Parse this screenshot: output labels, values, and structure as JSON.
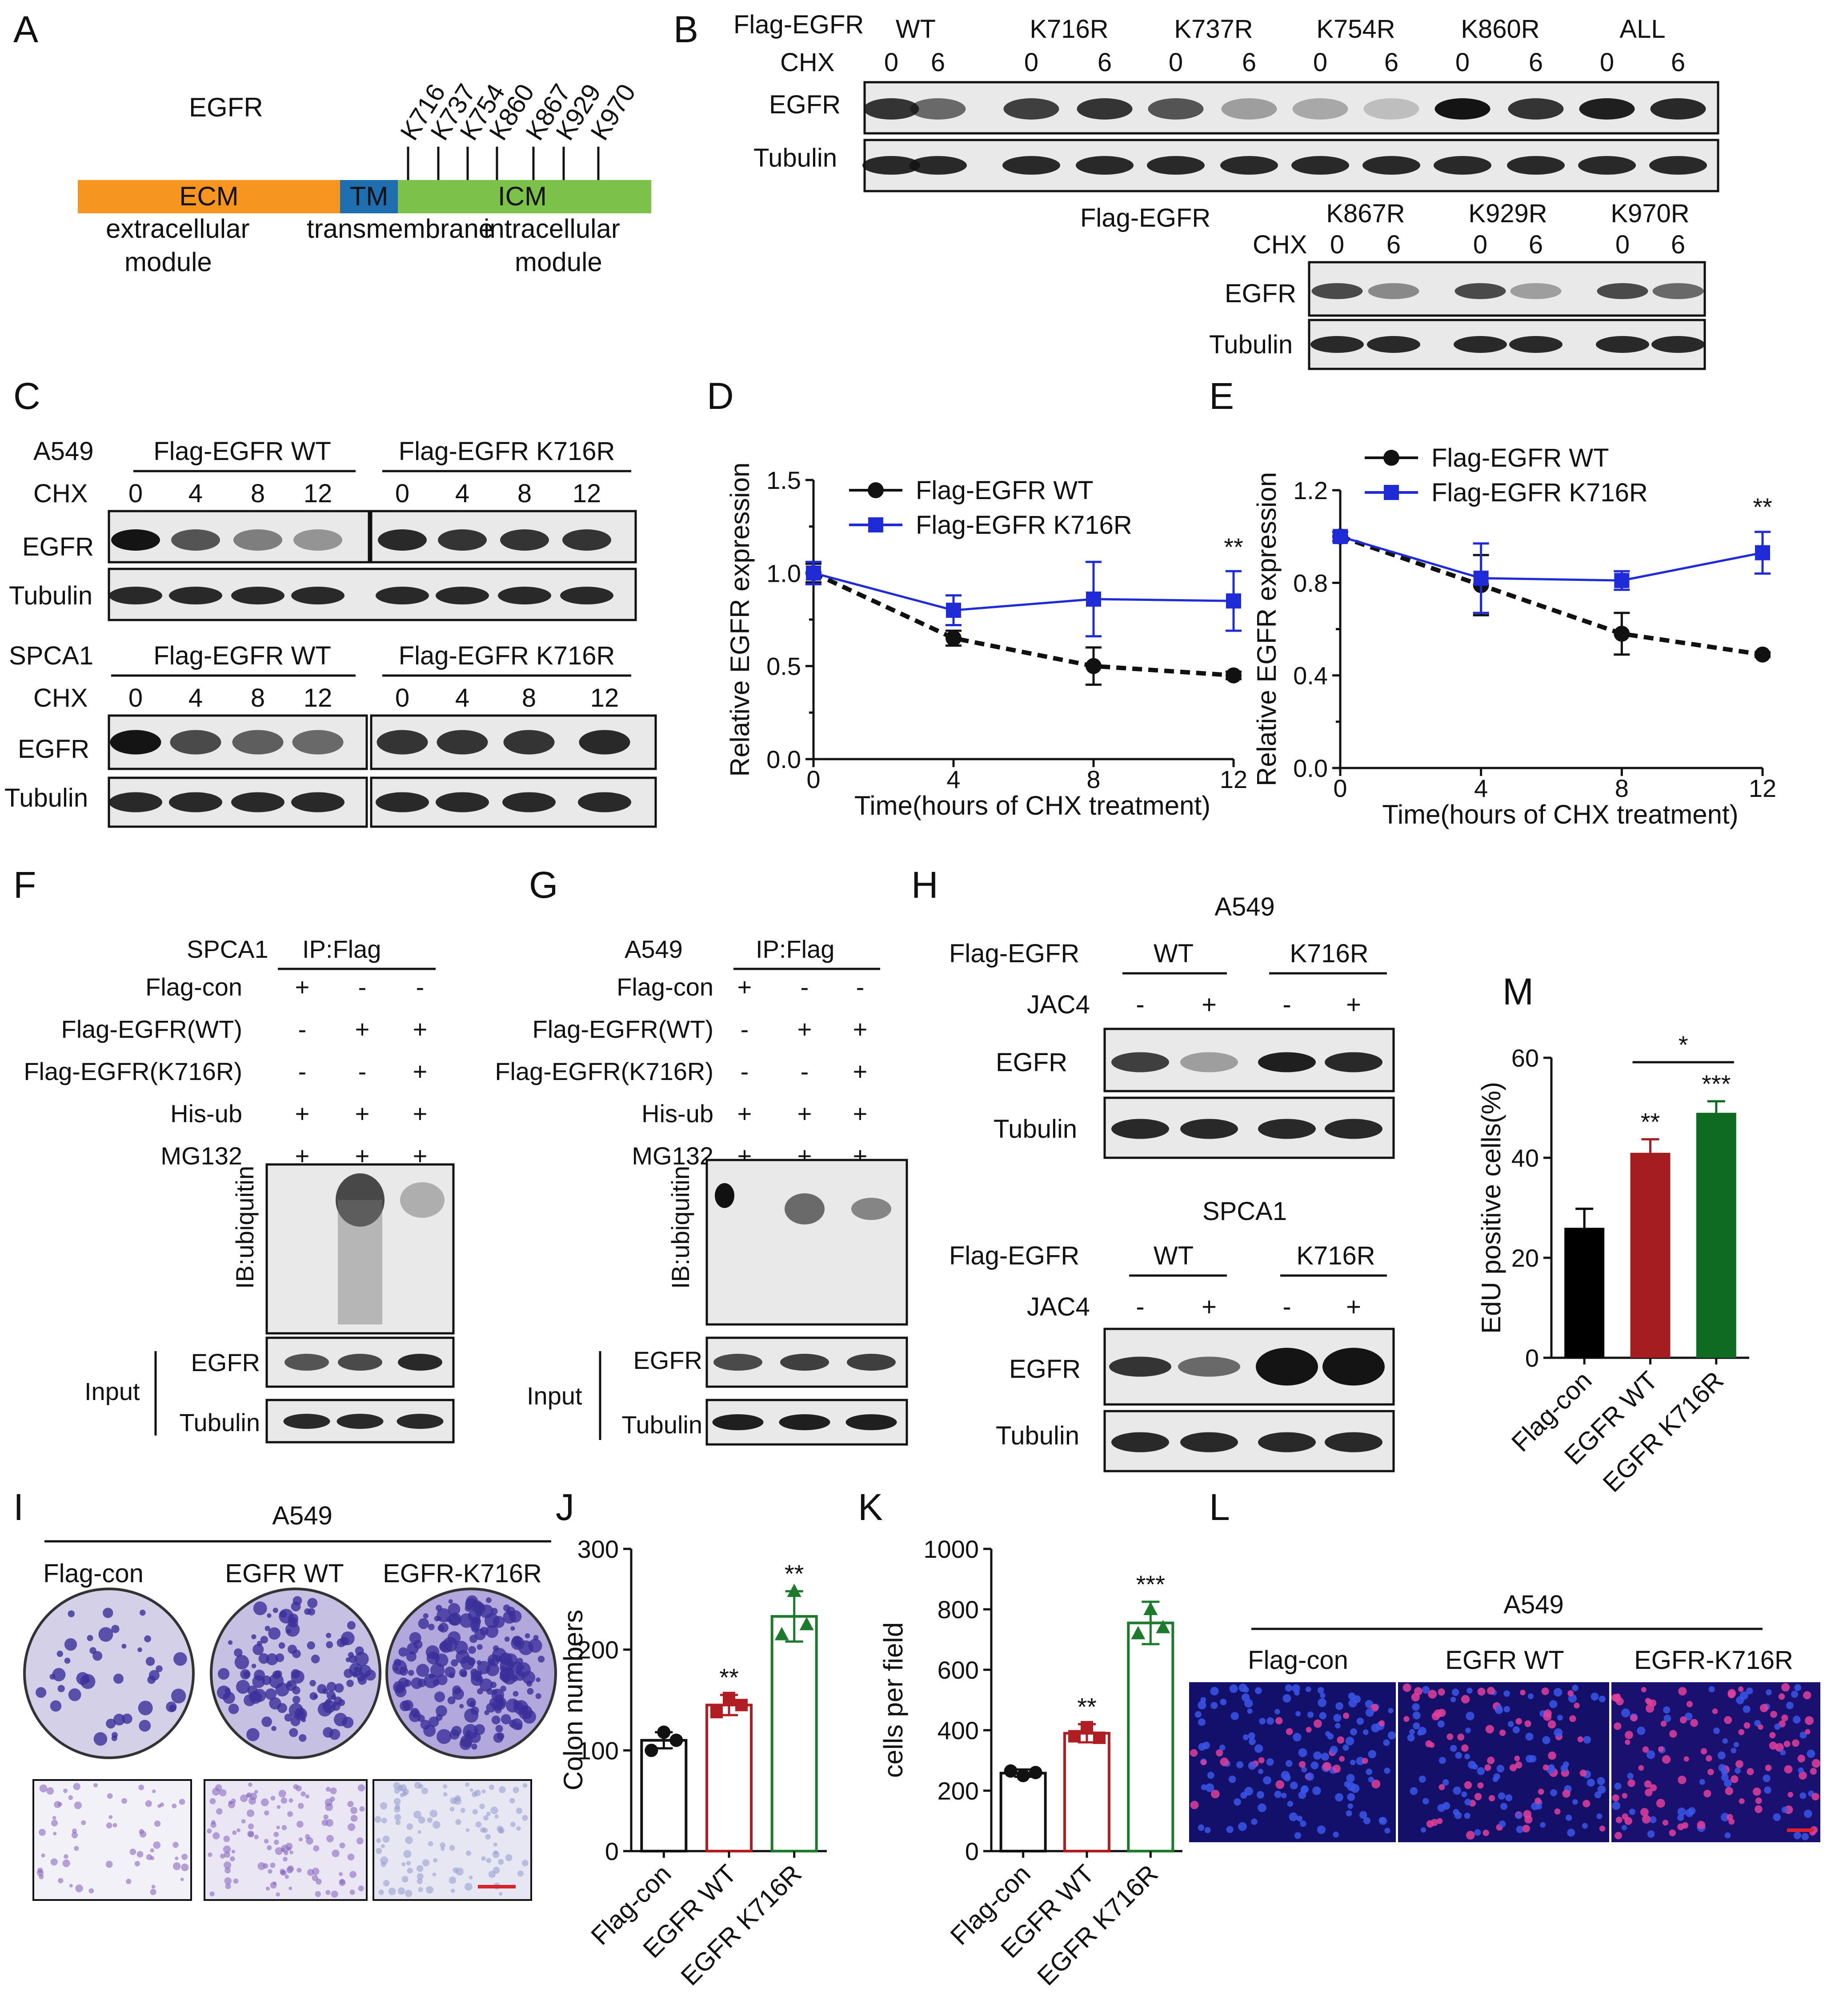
{
  "panel_letters": [
    "A",
    "B",
    "C",
    "D",
    "E",
    "F",
    "G",
    "H",
    "I",
    "J",
    "K",
    "L",
    "M"
  ],
  "panelA": {
    "title": "EGFR",
    "segments": [
      {
        "label": "ECM",
        "color": "#f6951f"
      },
      {
        "label": "TM",
        "color": "#1f6fb0"
      },
      {
        "label": "ICM",
        "color": "#7cc24a"
      }
    ],
    "sites": [
      "K716",
      "K737",
      "K754",
      "K860",
      "K867",
      "K929",
      "K970"
    ],
    "sub_labels": {
      "extracellular": "extracellular",
      "transmembrane": "transmembrane",
      "intracellular": "intracellular",
      "module1": "module",
      "module2": "module"
    }
  },
  "panelB": {
    "flag_label": "Flag-EGFR",
    "chx_label": "CHX",
    "row1_groups": [
      "WT",
      "K716R",
      "K737R",
      "K754R",
      "K860R",
      "ALL"
    ],
    "row2_groups": [
      "K867R",
      "K929R",
      "K970R"
    ],
    "times": [
      "0",
      "6"
    ],
    "bands": [
      "EGFR",
      "Tubulin"
    ]
  },
  "panelC": {
    "cells": [
      "A549",
      "SPCA1"
    ],
    "groups": [
      "Flag-EGFR WT",
      "Flag-EGFR K716R"
    ],
    "chx_label": "CHX",
    "times": [
      "0",
      "4",
      "8",
      "12"
    ],
    "bands": [
      "EGFR",
      "Tubulin"
    ]
  },
  "panelD": {
    "chart_data": {
      "type": "line",
      "xlabel": "Time(hours of CHX treatment)",
      "ylabel": "Relative EGFR expression",
      "x": [
        0,
        4,
        8,
        12
      ],
      "xticks": [
        "0",
        "4",
        "8",
        "12"
      ],
      "yticks": [
        "0.0",
        "0.5",
        "1.0",
        "1.5"
      ],
      "ylim": [
        0,
        1.5
      ],
      "series": [
        {
          "name": "Flag-EGFR WT",
          "values": [
            1.0,
            0.65,
            0.5,
            0.45
          ],
          "err": [
            0.05,
            0.04,
            0.1,
            0.02
          ],
          "color": "#111111",
          "dash": true,
          "marker": "circle"
        },
        {
          "name": "Flag-EGFR K716R",
          "values": [
            1.0,
            0.8,
            0.86,
            0.85
          ],
          "err": [
            0.06,
            0.08,
            0.2,
            0.16
          ],
          "color": "#1f2bd6",
          "dash": false,
          "marker": "square"
        }
      ],
      "annotation": "**",
      "legend": "top-right"
    }
  },
  "panelE": {
    "chart_data": {
      "type": "line",
      "xlabel": "Time(hours of CHX treatment)",
      "ylabel": "Relative EGFR expression",
      "x": [
        0,
        4,
        8,
        12
      ],
      "xticks": [
        "0",
        "4",
        "8",
        "12"
      ],
      "yticks": [
        "0.0",
        "0.4",
        "0.8",
        "1.2"
      ],
      "ylim": [
        0,
        1.2
      ],
      "series": [
        {
          "name": "Flag-EGFR WT",
          "values": [
            1.0,
            0.79,
            0.58,
            0.49
          ],
          "err": [
            0.02,
            0.13,
            0.09,
            0.01
          ],
          "color": "#111111",
          "dash": true,
          "marker": "circle"
        },
        {
          "name": "Flag-EGFR K716R",
          "values": [
            1.0,
            0.82,
            0.81,
            0.93
          ],
          "err": [
            0.02,
            0.15,
            0.04,
            0.09
          ],
          "color": "#1f2bd6",
          "dash": false,
          "marker": "square"
        }
      ],
      "annotation": "**",
      "legend": "top-right"
    }
  },
  "panelF": {
    "cell": "SPCA1",
    "ip": "IP:Flag",
    "rows": [
      {
        "label": "Flag-con",
        "signs": [
          "+",
          "-",
          "-"
        ]
      },
      {
        "label": "Flag-EGFR(WT)",
        "signs": [
          "-",
          "+",
          "+"
        ]
      },
      {
        "label": "Flag-EGFR(K716R)",
        "signs": [
          "-",
          "-",
          "+"
        ]
      },
      {
        "label": "His-ub",
        "signs": [
          "+",
          "+",
          "+"
        ]
      },
      {
        "label": "MG132",
        "signs": [
          "+",
          "+",
          "+"
        ]
      }
    ],
    "ib": "IB:ubiquitin",
    "input": "Input",
    "bands": [
      "EGFR",
      "Tubulin"
    ]
  },
  "panelG": {
    "cell": "A549",
    "ip": "IP:Flag",
    "rows": [
      {
        "label": "Flag-con",
        "signs": [
          "+",
          "-",
          "-"
        ]
      },
      {
        "label": "Flag-EGFR(WT)",
        "signs": [
          "-",
          "+",
          "+"
        ]
      },
      {
        "label": "Flag-EGFR(K716R)",
        "signs": [
          "-",
          "-",
          "+"
        ]
      },
      {
        "label": "His-ub",
        "signs": [
          "+",
          "+",
          "+"
        ]
      },
      {
        "label": "MG132",
        "signs": [
          "+",
          "+",
          "+"
        ]
      }
    ],
    "ib": "IB:ubiquitin",
    "input": "Input",
    "bands": [
      "EGFR",
      "Tubulin"
    ]
  },
  "panelH": {
    "cells": [
      "A549",
      "SPCA1"
    ],
    "flag_label": "Flag-EGFR",
    "groups": [
      "WT",
      "K716R"
    ],
    "jac_label": "JAC4",
    "jac_signs": [
      "-",
      "+",
      "-",
      "+"
    ],
    "bands": [
      "EGFR",
      "Tubulin"
    ]
  },
  "panelI": {
    "cell": "A549",
    "groups": [
      "Flag-con",
      "EGFR WT",
      "EGFR-K716R"
    ]
  },
  "panelJ": {
    "chart_data": {
      "type": "bar",
      "categories": [
        "Flag-con",
        "EGFR WT",
        "EGFR K716R"
      ],
      "values": [
        110,
        145,
        233
      ],
      "err": [
        8,
        10,
        25
      ],
      "points": [
        [
          100,
          118,
          110
        ],
        [
          138,
          152,
          145
        ],
        [
          215,
          258,
          225
        ]
      ],
      "colors": [
        "#111111",
        "#b01e23",
        "#1d7a2d"
      ],
      "ylabel": "Colon numbers",
      "yticks": [
        "0",
        "100",
        "200",
        "300"
      ],
      "ylim": [
        0,
        300
      ],
      "annotations": [
        "",
        "**",
        "**"
      ]
    }
  },
  "panelK": {
    "chart_data": {
      "type": "bar",
      "categories": [
        "Flag-con",
        "EGFR WT",
        "EGFR K716R"
      ],
      "values": [
        258,
        390,
        755
      ],
      "err": [
        12,
        30,
        70
      ],
      "points": [
        [
          265,
          250,
          260
        ],
        [
          380,
          410,
          375
        ],
        [
          720,
          800,
          740
        ]
      ],
      "colors": [
        "#111111",
        "#b01e23",
        "#1d7a2d"
      ],
      "ylabel": "cells per field",
      "yticks": [
        "0",
        "200",
        "400",
        "600",
        "800",
        "1000"
      ],
      "ylim": [
        0,
        1000
      ],
      "annotations": [
        "",
        "**",
        "***"
      ]
    }
  },
  "panelL": {
    "cell": "A549",
    "groups": [
      "Flag-con",
      "EGFR WT",
      "EGFR-K716R"
    ]
  },
  "panelM": {
    "chart_data": {
      "type": "bar",
      "categories": [
        "Flag-con",
        "EGFR WT",
        "EGFR K716R"
      ],
      "values": [
        26,
        41,
        49
      ],
      "err": [
        3.8,
        2.7,
        2.3
      ],
      "colors": [
        "#000000",
        "#a51d21",
        "#0f6a22"
      ],
      "ylabel": "EdU positive cells(%)",
      "yticks": [
        "0",
        "20",
        "40",
        "60"
      ],
      "ylim": [
        0,
        60
      ],
      "annotations": [
        "",
        "**",
        "***"
      ],
      "bracket": "*"
    }
  }
}
